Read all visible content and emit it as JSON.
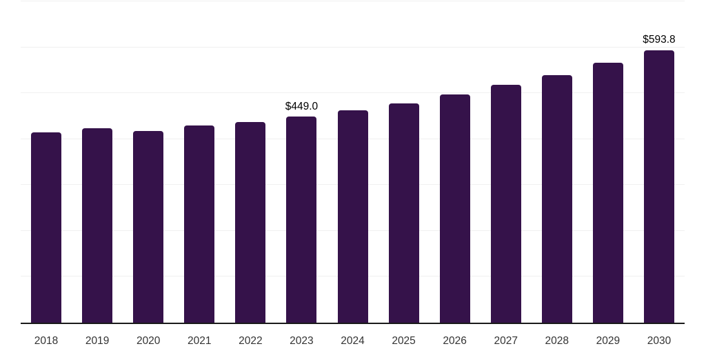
{
  "chart_data": {
    "type": "bar",
    "title": "",
    "xlabel": "",
    "ylabel": "",
    "categories": [
      "2018",
      "2019",
      "2020",
      "2021",
      "2022",
      "2023",
      "2024",
      "2025",
      "2026",
      "2027",
      "2028",
      "2029",
      "2030"
    ],
    "values": [
      415,
      424,
      417,
      429,
      437,
      449.0,
      463,
      478,
      497,
      518,
      540,
      566,
      593.8
    ],
    "data_labels": [
      "",
      "",
      "",
      "",
      "",
      "$449.0",
      "",
      "",
      "",
      "",
      "",
      "",
      "$593.8"
    ],
    "ylim": [
      0,
      700
    ],
    "grid_step": 100,
    "grid": "horizontal",
    "y_tick_labels": [],
    "legend_position": "none"
  },
  "colors": {
    "background": "#ffffff",
    "bar": "#35124A",
    "gridline": "#f0f0f0",
    "axis_line": "#1a1a1a",
    "tick_label": "#333333",
    "data_label": "#000000"
  }
}
